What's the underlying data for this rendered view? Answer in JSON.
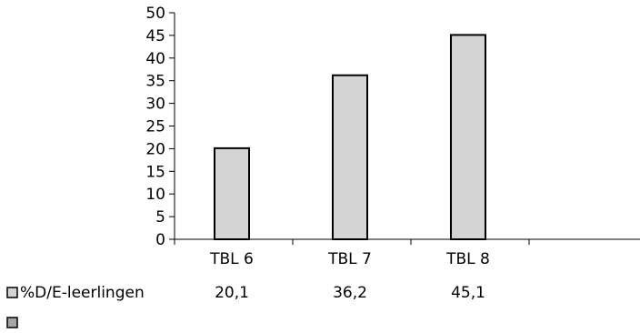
{
  "chart_data": {
    "type": "bar",
    "categories": [
      "TBL 6",
      "TBL 7",
      "TBL 8"
    ],
    "series": [
      {
        "name": "%D/E-leerlingen",
        "values": [
          20.1,
          36.2,
          45.1
        ],
        "color": "#d4d4d4",
        "value_labels": [
          "20,1",
          "36,2",
          "45,1"
        ]
      },
      {
        "name": "",
        "values": [
          null,
          null,
          null
        ],
        "color": "#a6a6a6"
      }
    ],
    "ylim": [
      0,
      50
    ],
    "yticks": [
      "0",
      "5",
      "10",
      "15",
      "20",
      "25",
      "30",
      "35",
      "40",
      "45",
      "50"
    ],
    "ytick_values": [
      0,
      5,
      10,
      15,
      20,
      25,
      30,
      35,
      40,
      45,
      50
    ],
    "grid": false,
    "legend": "bottom-left data table",
    "bar_edge_color": "#000000"
  }
}
